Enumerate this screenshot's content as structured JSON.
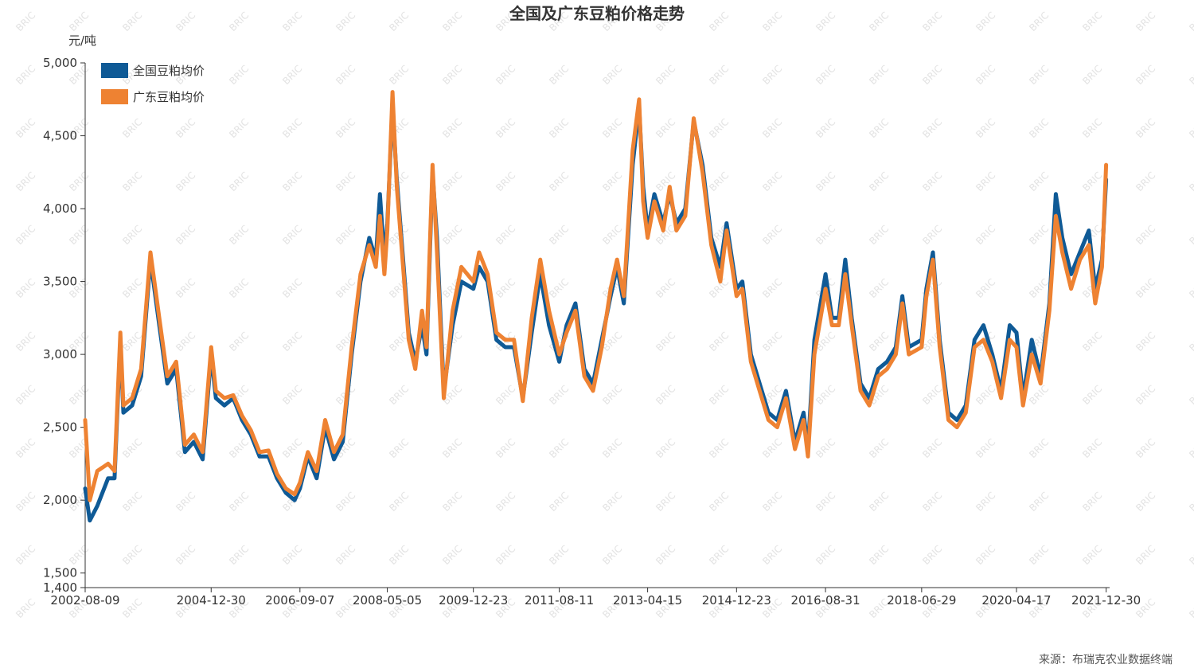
{
  "chart_data": {
    "type": "line",
    "title": "全国及广东豆粕价格走势",
    "ylabel": "元/吨",
    "xlabel": "",
    "ylim": [
      1400,
      5000
    ],
    "yticks": [
      1400,
      1500,
      2000,
      2500,
      3000,
      3500,
      4000,
      4500,
      5000
    ],
    "ytick_labels": [
      "1,400",
      "1,500",
      "2,000",
      "2,500",
      "3,000",
      "3,500",
      "4,000",
      "4,500",
      "5,000"
    ],
    "xlim": [
      "2002-08-09",
      "2022-01-01"
    ],
    "xticks": [
      "2002-08-09",
      "2004-12-30",
      "2006-09-07",
      "2008-05-05",
      "2009-12-23",
      "2011-08-11",
      "2013-04-15",
      "2014-12-23",
      "2016-08-31",
      "2018-06-29",
      "2020-04-17",
      "2021-12-30"
    ],
    "legend_position": "top-left",
    "grid": false,
    "source": "来源：布瑞克农业数据终端",
    "watermark": "BRIC",
    "series": [
      {
        "name": "全国豆粕均价",
        "color": "#0f5a96",
        "points": [
          [
            "2002-08-09",
            2080
          ],
          [
            "2002-09-10",
            1860
          ],
          [
            "2002-11-01",
            1960
          ],
          [
            "2003-01-15",
            2150
          ],
          [
            "2003-03-01",
            2150
          ],
          [
            "2003-04-10",
            3100
          ],
          [
            "2003-05-01",
            2600
          ],
          [
            "2003-07-01",
            2650
          ],
          [
            "2003-09-01",
            2850
          ],
          [
            "2003-11-05",
            3650
          ],
          [
            "2004-01-05",
            3200
          ],
          [
            "2004-03-01",
            2800
          ],
          [
            "2004-05-01",
            2900
          ],
          [
            "2004-07-01",
            2330
          ],
          [
            "2004-09-01",
            2400
          ],
          [
            "2004-11-01",
            2280
          ],
          [
            "2004-12-30",
            3000
          ],
          [
            "2005-02-01",
            2700
          ],
          [
            "2005-04-01",
            2650
          ],
          [
            "2005-06-01",
            2700
          ],
          [
            "2005-08-01",
            2550
          ],
          [
            "2005-10-01",
            2450
          ],
          [
            "2005-12-01",
            2300
          ],
          [
            "2006-02-01",
            2300
          ],
          [
            "2006-04-01",
            2150
          ],
          [
            "2006-06-01",
            2050
          ],
          [
            "2006-08-01",
            2000
          ],
          [
            "2006-09-07",
            2080
          ],
          [
            "2006-11-01",
            2300
          ],
          [
            "2007-01-01",
            2150
          ],
          [
            "2007-03-01",
            2500
          ],
          [
            "2007-05-01",
            2280
          ],
          [
            "2007-07-01",
            2400
          ],
          [
            "2007-09-01",
            3000
          ],
          [
            "2007-11-01",
            3500
          ],
          [
            "2008-01-01",
            3800
          ],
          [
            "2008-02-15",
            3650
          ],
          [
            "2008-03-15",
            4100
          ],
          [
            "2008-04-15",
            3650
          ],
          [
            "2008-05-05",
            3900
          ],
          [
            "2008-06-10",
            4700
          ],
          [
            "2008-07-10",
            4200
          ],
          [
            "2008-08-15",
            3750
          ],
          [
            "2008-10-01",
            3150
          ],
          [
            "2008-11-15",
            2950
          ],
          [
            "2009-01-01",
            3200
          ],
          [
            "2009-02-01",
            3000
          ],
          [
            "2009-03-15",
            4250
          ],
          [
            "2009-04-15",
            3800
          ],
          [
            "2009-06-01",
            2750
          ],
          [
            "2009-08-01",
            3200
          ],
          [
            "2009-10-01",
            3500
          ],
          [
            "2009-12-23",
            3450
          ],
          [
            "2010-02-01",
            3600
          ],
          [
            "2010-04-01",
            3500
          ],
          [
            "2010-06-01",
            3100
          ],
          [
            "2010-08-01",
            3050
          ],
          [
            "2010-10-01",
            3050
          ],
          [
            "2010-12-01",
            2700
          ],
          [
            "2011-02-01",
            3150
          ],
          [
            "2011-04-01",
            3550
          ],
          [
            "2011-06-01",
            3200
          ],
          [
            "2011-08-11",
            2950
          ],
          [
            "2011-10-01",
            3200
          ],
          [
            "2011-12-01",
            3350
          ],
          [
            "2012-02-01",
            2900
          ],
          [
            "2012-04-01",
            2800
          ],
          [
            "2012-06-01",
            3100
          ],
          [
            "2012-08-01",
            3400
          ],
          [
            "2012-09-15",
            3600
          ],
          [
            "2012-11-01",
            3350
          ],
          [
            "2013-01-01",
            4300
          ],
          [
            "2013-02-15",
            4700
          ],
          [
            "2013-03-15",
            4150
          ],
          [
            "2013-04-15",
            3850
          ],
          [
            "2013-06-01",
            4100
          ],
          [
            "2013-08-01",
            3900
          ],
          [
            "2013-09-15",
            4100
          ],
          [
            "2013-11-01",
            3900
          ],
          [
            "2014-01-01",
            4000
          ],
          [
            "2014-03-01",
            4600
          ],
          [
            "2014-05-01",
            4300
          ],
          [
            "2014-07-01",
            3800
          ],
          [
            "2014-09-01",
            3600
          ],
          [
            "2014-10-15",
            3900
          ],
          [
            "2014-12-23",
            3450
          ],
          [
            "2015-02-01",
            3500
          ],
          [
            "2015-04-01",
            3000
          ],
          [
            "2015-06-01",
            2800
          ],
          [
            "2015-08-01",
            2600
          ],
          [
            "2015-10-01",
            2550
          ],
          [
            "2015-12-01",
            2750
          ],
          [
            "2016-02-01",
            2400
          ],
          [
            "2016-04-01",
            2600
          ],
          [
            "2016-05-01",
            2350
          ],
          [
            "2016-06-15",
            3100
          ],
          [
            "2016-08-31",
            3550
          ],
          [
            "2016-10-15",
            3250
          ],
          [
            "2016-12-01",
            3250
          ],
          [
            "2017-01-15",
            3650
          ],
          [
            "2017-03-01",
            3250
          ],
          [
            "2017-05-01",
            2800
          ],
          [
            "2017-07-01",
            2700
          ],
          [
            "2017-09-01",
            2900
          ],
          [
            "2017-11-01",
            2950
          ],
          [
            "2018-01-01",
            3050
          ],
          [
            "2018-02-15",
            3400
          ],
          [
            "2018-04-01",
            3050
          ],
          [
            "2018-06-29",
            3100
          ],
          [
            "2018-08-01",
            3450
          ],
          [
            "2018-09-15",
            3700
          ],
          [
            "2018-11-01",
            3100
          ],
          [
            "2019-01-01",
            2600
          ],
          [
            "2019-03-01",
            2550
          ],
          [
            "2019-05-01",
            2650
          ],
          [
            "2019-07-01",
            3100
          ],
          [
            "2019-09-01",
            3200
          ],
          [
            "2019-11-01",
            3000
          ],
          [
            "2020-01-01",
            2750
          ],
          [
            "2020-03-01",
            3200
          ],
          [
            "2020-04-17",
            3150
          ],
          [
            "2020-06-01",
            2700
          ],
          [
            "2020-08-01",
            3100
          ],
          [
            "2020-10-01",
            2850
          ],
          [
            "2020-12-01",
            3350
          ],
          [
            "2021-01-15",
            4100
          ],
          [
            "2021-03-01",
            3800
          ],
          [
            "2021-05-01",
            3550
          ],
          [
            "2021-07-01",
            3700
          ],
          [
            "2021-09-01",
            3850
          ],
          [
            "2021-10-15",
            3450
          ],
          [
            "2021-12-01",
            3650
          ],
          [
            "2021-12-30",
            4200
          ]
        ]
      },
      {
        "name": "广东豆粕均价",
        "color": "#ee8232",
        "points": [
          [
            "2002-08-09",
            2550
          ],
          [
            "2002-09-10",
            2000
          ],
          [
            "2002-11-01",
            2200
          ],
          [
            "2003-01-15",
            2250
          ],
          [
            "2003-03-01",
            2200
          ],
          [
            "2003-04-10",
            3150
          ],
          [
            "2003-05-01",
            2650
          ],
          [
            "2003-07-01",
            2700
          ],
          [
            "2003-09-01",
            2900
          ],
          [
            "2003-11-05",
            3700
          ],
          [
            "2004-01-05",
            3250
          ],
          [
            "2004-03-01",
            2850
          ],
          [
            "2004-05-01",
            2950
          ],
          [
            "2004-07-01",
            2380
          ],
          [
            "2004-09-01",
            2450
          ],
          [
            "2004-11-01",
            2330
          ],
          [
            "2004-12-30",
            3050
          ],
          [
            "2005-02-01",
            2750
          ],
          [
            "2005-04-01",
            2700
          ],
          [
            "2005-06-01",
            2720
          ],
          [
            "2005-08-01",
            2580
          ],
          [
            "2005-10-01",
            2480
          ],
          [
            "2005-12-01",
            2330
          ],
          [
            "2006-02-01",
            2340
          ],
          [
            "2006-04-01",
            2180
          ],
          [
            "2006-06-01",
            2080
          ],
          [
            "2006-08-01",
            2040
          ],
          [
            "2006-09-07",
            2120
          ],
          [
            "2006-11-01",
            2330
          ],
          [
            "2007-01-01",
            2200
          ],
          [
            "2007-03-01",
            2550
          ],
          [
            "2007-05-01",
            2330
          ],
          [
            "2007-07-01",
            2450
          ],
          [
            "2007-09-01",
            3050
          ],
          [
            "2007-11-01",
            3550
          ],
          [
            "2008-01-01",
            3750
          ],
          [
            "2008-02-15",
            3600
          ],
          [
            "2008-03-15",
            3950
          ],
          [
            "2008-04-15",
            3550
          ],
          [
            "2008-05-05",
            3850
          ],
          [
            "2008-06-10",
            4800
          ],
          [
            "2008-07-10",
            4150
          ],
          [
            "2008-08-15",
            3700
          ],
          [
            "2008-10-01",
            3100
          ],
          [
            "2008-11-15",
            2900
          ],
          [
            "2009-01-01",
            3300
          ],
          [
            "2009-02-01",
            3050
          ],
          [
            "2009-03-15",
            4300
          ],
          [
            "2009-04-15",
            3700
          ],
          [
            "2009-06-01",
            2700
          ],
          [
            "2009-08-01",
            3300
          ],
          [
            "2009-10-01",
            3600
          ],
          [
            "2009-12-23",
            3500
          ],
          [
            "2010-02-01",
            3700
          ],
          [
            "2010-04-01",
            3550
          ],
          [
            "2010-06-01",
            3150
          ],
          [
            "2010-08-01",
            3100
          ],
          [
            "2010-10-01",
            3100
          ],
          [
            "2010-12-01",
            2680
          ],
          [
            "2011-02-01",
            3250
          ],
          [
            "2011-04-01",
            3650
          ],
          [
            "2011-06-01",
            3300
          ],
          [
            "2011-08-11",
            3000
          ],
          [
            "2011-10-01",
            3150
          ],
          [
            "2011-12-01",
            3300
          ],
          [
            "2012-02-01",
            2850
          ],
          [
            "2012-04-01",
            2750
          ],
          [
            "2012-06-01",
            3050
          ],
          [
            "2012-08-01",
            3450
          ],
          [
            "2012-09-15",
            3650
          ],
          [
            "2012-11-01",
            3400
          ],
          [
            "2013-01-01",
            4400
          ],
          [
            "2013-02-15",
            4750
          ],
          [
            "2013-03-15",
            4050
          ],
          [
            "2013-04-15",
            3800
          ],
          [
            "2013-06-01",
            4050
          ],
          [
            "2013-08-01",
            3850
          ],
          [
            "2013-09-15",
            4150
          ],
          [
            "2013-11-01",
            3850
          ],
          [
            "2014-01-01",
            3950
          ],
          [
            "2014-03-01",
            4620
          ],
          [
            "2014-05-01",
            4250
          ],
          [
            "2014-07-01",
            3750
          ],
          [
            "2014-09-01",
            3500
          ],
          [
            "2014-10-15",
            3850
          ],
          [
            "2014-12-23",
            3400
          ],
          [
            "2015-02-01",
            3450
          ],
          [
            "2015-04-01",
            2950
          ],
          [
            "2015-06-01",
            2750
          ],
          [
            "2015-08-01",
            2550
          ],
          [
            "2015-10-01",
            2500
          ],
          [
            "2015-12-01",
            2700
          ],
          [
            "2016-02-01",
            2350
          ],
          [
            "2016-04-01",
            2550
          ],
          [
            "2016-05-01",
            2300
          ],
          [
            "2016-06-15",
            3000
          ],
          [
            "2016-08-31",
            3450
          ],
          [
            "2016-10-15",
            3200
          ],
          [
            "2016-12-01",
            3200
          ],
          [
            "2017-01-15",
            3550
          ],
          [
            "2017-03-01",
            3200
          ],
          [
            "2017-05-01",
            2750
          ],
          [
            "2017-07-01",
            2650
          ],
          [
            "2017-09-01",
            2850
          ],
          [
            "2017-11-01",
            2900
          ],
          [
            "2018-01-01",
            3000
          ],
          [
            "2018-02-15",
            3350
          ],
          [
            "2018-04-01",
            3000
          ],
          [
            "2018-06-29",
            3050
          ],
          [
            "2018-08-01",
            3400
          ],
          [
            "2018-09-15",
            3650
          ],
          [
            "2018-11-01",
            3050
          ],
          [
            "2019-01-01",
            2550
          ],
          [
            "2019-03-01",
            2500
          ],
          [
            "2019-05-01",
            2600
          ],
          [
            "2019-07-01",
            3050
          ],
          [
            "2019-09-01",
            3100
          ],
          [
            "2019-11-01",
            2950
          ],
          [
            "2020-01-01",
            2700
          ],
          [
            "2020-03-01",
            3100
          ],
          [
            "2020-04-17",
            3050
          ],
          [
            "2020-06-01",
            2650
          ],
          [
            "2020-08-01",
            3000
          ],
          [
            "2020-10-01",
            2800
          ],
          [
            "2020-12-01",
            3300
          ],
          [
            "2021-01-15",
            3950
          ],
          [
            "2021-03-01",
            3700
          ],
          [
            "2021-05-01",
            3450
          ],
          [
            "2021-07-01",
            3650
          ],
          [
            "2021-09-01",
            3750
          ],
          [
            "2021-10-15",
            3350
          ],
          [
            "2021-12-01",
            3600
          ],
          [
            "2021-12-30",
            4300
          ]
        ]
      }
    ]
  }
}
